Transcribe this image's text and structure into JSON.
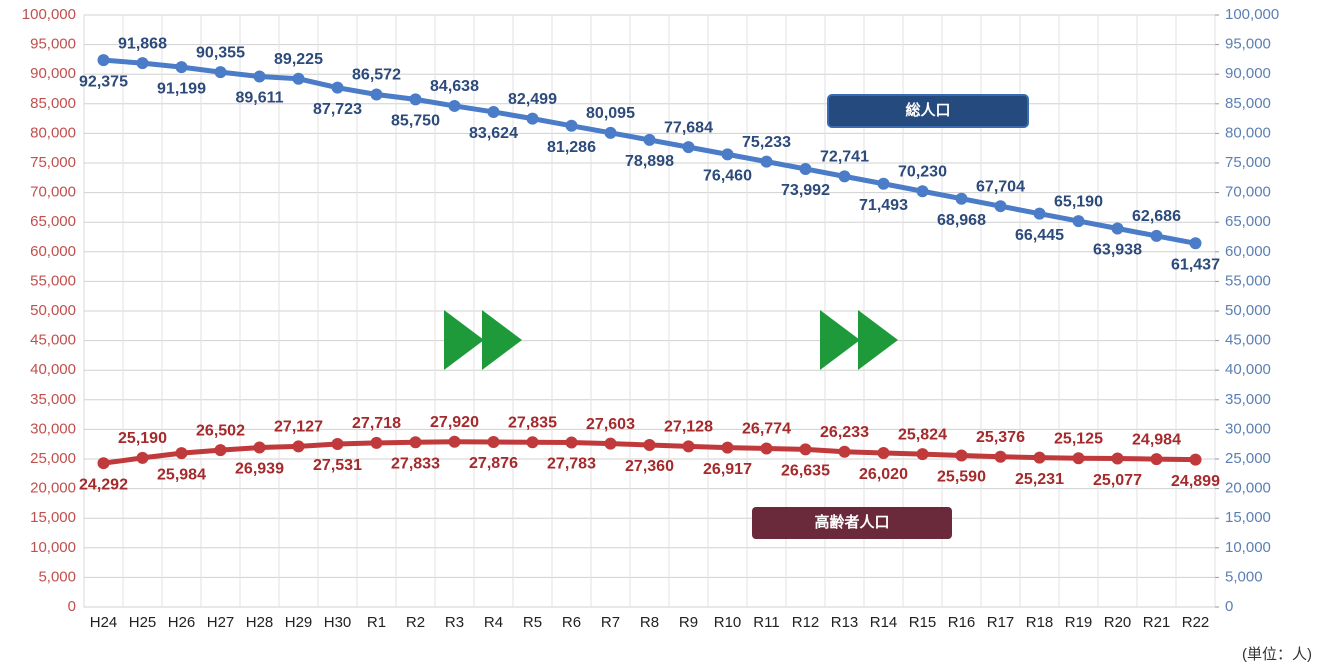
{
  "chart_data": {
    "type": "line",
    "categories": [
      "H24",
      "H25",
      "H26",
      "H27",
      "H28",
      "H29",
      "H30",
      "R1",
      "R2",
      "R3",
      "R4",
      "R5",
      "R6",
      "R7",
      "R8",
      "R9",
      "R10",
      "R11",
      "R12",
      "R13",
      "R14",
      "R15",
      "R16",
      "R17",
      "R18",
      "R19",
      "R20",
      "R21",
      "R22"
    ],
    "series": [
      {
        "name": "総人口",
        "color": "#4a7cc7",
        "label_color": "#2c4a7a",
        "legend_color": "#254a7d",
        "axis": "y2",
        "values": [
          92375,
          91868,
          91199,
          90355,
          89611,
          89225,
          87723,
          86572,
          85750,
          84638,
          83624,
          82499,
          81286,
          80095,
          78898,
          77684,
          76460,
          75233,
          73992,
          72741,
          71493,
          70230,
          68968,
          67704,
          66445,
          65190,
          63938,
          62686,
          61437
        ],
        "value_labels": [
          "92,375",
          "91,868",
          "91,199",
          "90,355",
          "89,611",
          "89,225",
          "87,723",
          "86,572",
          "85,750",
          "84,638",
          "83,624",
          "82,499",
          "81,286",
          "80,095",
          "78,898",
          "77,684",
          "76,460",
          "75,233",
          "73,992",
          "72,741",
          "71,493",
          "70,230",
          "68,968",
          "67,704",
          "66,445",
          "65,190",
          "63,938",
          "62,686",
          "61,437"
        ]
      },
      {
        "name": "高齢者人口",
        "color": "#c0393b",
        "label_color": "#a52a2c",
        "legend_color": "#6a2a3c",
        "values": [
          24292,
          25190,
          25984,
          26502,
          26939,
          27127,
          27531,
          27718,
          27833,
          27920,
          27876,
          27835,
          27783,
          27603,
          27360,
          27128,
          26917,
          26774,
          26635,
          26233,
          26020,
          25824,
          25590,
          25376,
          25231,
          25125,
          25077,
          24984,
          24899
        ],
        "value_labels": [
          "24,292",
          "25,190",
          "25,984",
          "26,502",
          "26,939",
          "27,127",
          "27,531",
          "27,718",
          "27,833",
          "27,920",
          "27,876",
          "27,835",
          "27,783",
          "27,603",
          "27,360",
          "27,128",
          "26,917",
          "26,774",
          "26,635",
          "26,233",
          "26,020",
          "25,824",
          "25,590",
          "25,376",
          "25,231",
          "25,125",
          "25,077",
          "24,984",
          "24,899"
        ]
      }
    ],
    "ylim": [
      0,
      100000
    ],
    "yticks": [
      0,
      {
        "value": 5000,
        "label": "5,000"
      },
      {
        "value": 10000,
        "label": "10,000"
      },
      {
        "value": 15000,
        "label": "15,000"
      },
      {
        "value": 20000,
        "label": "20,000"
      },
      {
        "value": 25000,
        "label": "25,000"
      },
      {
        "value": 30000,
        "label": "30,000"
      },
      {
        "value": 35000,
        "label": "35,000"
      },
      {
        "value": 40000,
        "label": "40,000"
      },
      {
        "value": 45000,
        "label": "45,000"
      },
      {
        "value": 50000,
        "label": "50,000"
      },
      {
        "value": 55000,
        "label": "55,000"
      },
      {
        "value": 60000,
        "label": "60,000"
      },
      {
        "value": 65000,
        "label": "65,000"
      },
      {
        "value": 70000,
        "label": "70,000"
      },
      {
        "value": 75000,
        "label": "75,000"
      },
      {
        "value": 80000,
        "label": "80,000"
      },
      {
        "value": 85000,
        "label": "85,000"
      },
      {
        "value": 90000,
        "label": "90,000"
      },
      {
        "value": 95000,
        "label": "95,000"
      },
      {
        "value": 100000,
        "label": "100,000"
      }
    ],
    "y2lim": [
      0,
      100000
    ],
    "y2ticks": [
      0,
      {
        "value": 5000,
        "label": "5,000"
      },
      {
        "value": 10000,
        "label": "10,000"
      },
      {
        "value": 15000,
        "label": "15,000"
      },
      {
        "value": 20000,
        "label": "20,000"
      },
      {
        "value": 25000,
        "label": "25,000"
      },
      {
        "value": 30000,
        "label": "30,000"
      },
      {
        "value": 35000,
        "label": "35,000"
      },
      {
        "value": 40000,
        "label": "40,000"
      },
      {
        "value": 45000,
        "label": "45,000"
      },
      {
        "value": 50000,
        "label": "50,000"
      },
      {
        "value": 55000,
        "label": "55,000"
      },
      {
        "value": 60000,
        "label": "60,000"
      },
      {
        "value": 65000,
        "label": "65,000"
      },
      {
        "value": 70000,
        "label": "70,000"
      },
      {
        "value": 75000,
        "label": "75,000"
      },
      {
        "value": 80000,
        "label": "80,000"
      },
      {
        "value": 85000,
        "label": "85,000"
      },
      {
        "value": 90000,
        "label": "90,000"
      },
      {
        "value": 95000,
        "label": "95,000"
      },
      {
        "value": 100000,
        "label": "100,000"
      }
    ],
    "ytick_color": "#c0504d",
    "y2tick_color": "#5b7fb5",
    "grid": true,
    "unit_note": "(単位：人)"
  }
}
